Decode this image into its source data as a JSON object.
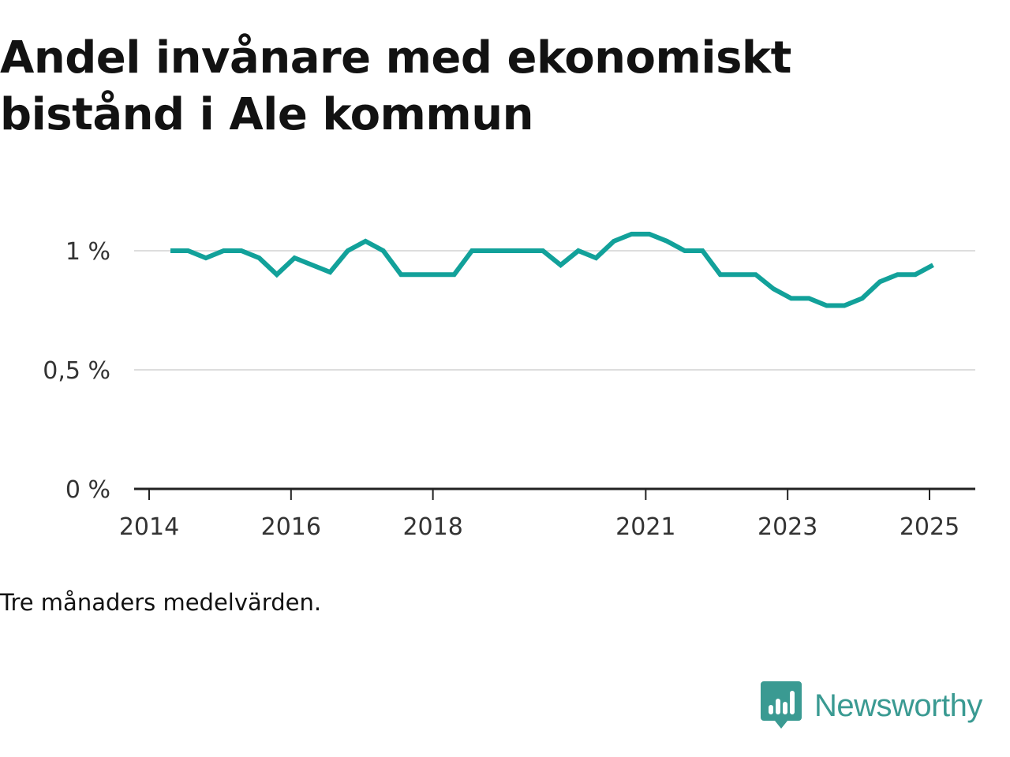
{
  "title": "Andel invånare med ekonomiskt bistånd i Ale kommun",
  "note": "Tre månaders medelvärden.",
  "brand": {
    "name": "Newsworthy",
    "icon": "newsworthy-logo-icon",
    "color": "#3a9a92"
  },
  "chart_data": {
    "type": "line",
    "title": "Andel invånare med ekonomiskt bistånd i Ale kommun",
    "xlabel": "",
    "ylabel": "",
    "grid": true,
    "line_color": "#12a19a",
    "ylim": [
      0,
      1.1
    ],
    "y_ticks": [
      {
        "value": 0,
        "label": "0 %"
      },
      {
        "value": 0.5,
        "label": "0,5 %"
      },
      {
        "value": 1,
        "label": "1 %"
      }
    ],
    "x_ticks": [
      {
        "value": 2014,
        "label": "2014"
      },
      {
        "value": 2016,
        "label": "2016"
      },
      {
        "value": 2018,
        "label": "2018"
      },
      {
        "value": 2021,
        "label": "2021"
      },
      {
        "value": 2023,
        "label": "2023"
      },
      {
        "value": 2025,
        "label": "2025"
      }
    ],
    "xlim": [
      2013.8,
      2025.65
    ],
    "series": [
      {
        "x": [
          2014.3,
          2014.55,
          2014.8,
          2015.05,
          2015.3,
          2015.55,
          2015.8,
          2016.05,
          2016.3,
          2016.55,
          2016.8,
          2017.05,
          2017.3,
          2017.55,
          2017.8,
          2018.05,
          2018.3,
          2018.55,
          2018.8,
          2019.05,
          2019.3,
          2019.55,
          2019.8,
          2020.05,
          2020.3,
          2020.55,
          2020.8,
          2021.05,
          2021.3,
          2021.55,
          2021.8,
          2022.05,
          2022.3,
          2022.55,
          2022.8,
          2023.05,
          2023.3,
          2023.55,
          2023.8,
          2024.05,
          2024.3,
          2024.55,
          2024.8,
          2025.05
        ],
        "y": [
          1.0,
          1.0,
          0.97,
          1.0,
          1.0,
          0.97,
          0.9,
          0.97,
          0.94,
          0.91,
          1.0,
          1.04,
          1.0,
          0.9,
          0.9,
          0.9,
          0.9,
          1.0,
          1.0,
          1.0,
          1.0,
          1.0,
          0.94,
          1.0,
          0.97,
          1.04,
          1.07,
          1.07,
          1.04,
          1.0,
          1.0,
          0.9,
          0.9,
          0.9,
          0.84,
          0.8,
          0.8,
          0.77,
          0.77,
          0.8,
          0.87,
          0.9,
          0.9,
          0.94
        ]
      }
    ]
  }
}
